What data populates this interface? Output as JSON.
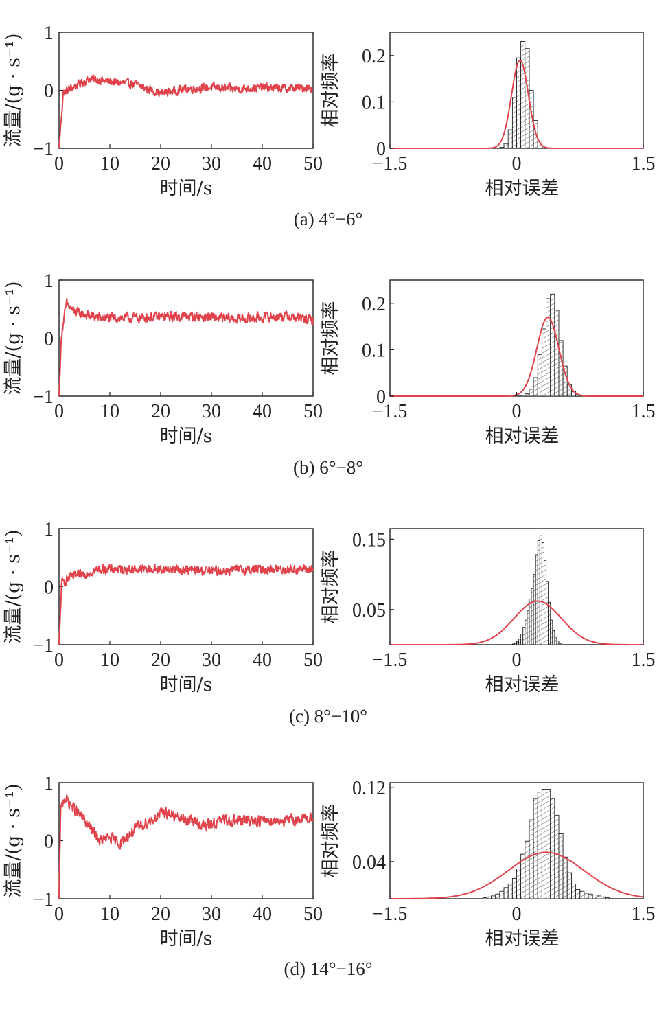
{
  "chart_data": [
    {
      "id": "a",
      "caption": "(a) 4°−6°",
      "time_series": {
        "type": "line",
        "xlabel": "时间/s",
        "ylabel": "流量/(g · s⁻¹)",
        "xlim": [
          0,
          50
        ],
        "ylim": [
          -1,
          1
        ],
        "xticks": [
          "0",
          "10",
          "20",
          "30",
          "40",
          "50"
        ],
        "yticks": [
          "−1",
          "0",
          "1"
        ],
        "series": [
          {
            "name": "flow",
            "mean": 0.05,
            "noise": 0.065,
            "start": -1.0,
            "anchors": [
              [
                0,
                -1.0
              ],
              [
                0.8,
                -0.05
              ],
              [
                2,
                0.02
              ],
              [
                6,
                0.2
              ],
              [
                10,
                0.15
              ],
              [
                15,
                0.1
              ],
              [
                20,
                -0.05
              ],
              [
                25,
                0.02
              ],
              [
                30,
                0.05
              ],
              [
                35,
                0.02
              ],
              [
                40,
                0.05
              ],
              [
                45,
                0.03
              ],
              [
                50,
                0.05
              ]
            ]
          }
        ]
      },
      "histogram": {
        "type": "bar",
        "xlabel": "相对误差",
        "ylabel": "相对频率",
        "xlim": [
          -1.5,
          1.5
        ],
        "ylim": [
          0,
          0.25
        ],
        "xticks": [
          "−1.5",
          "0",
          "1.5"
        ],
        "yticks": [
          "0",
          "0.1",
          "0.2"
        ],
        "bin_width": 0.05,
        "bins": [
          [
            -0.2,
            0.002
          ],
          [
            -0.15,
            0.01
          ],
          [
            -0.1,
            0.04
          ],
          [
            -0.05,
            0.11
          ],
          [
            0.0,
            0.195
          ],
          [
            0.05,
            0.23
          ],
          [
            0.1,
            0.215
          ],
          [
            0.15,
            0.125
          ],
          [
            0.2,
            0.06
          ],
          [
            0.25,
            0.015
          ],
          [
            0.3,
            0.003
          ]
        ],
        "fit": {
          "mu": 0.04,
          "sigma": 0.1,
          "peak": 0.19
        }
      }
    },
    {
      "id": "b",
      "caption": "(b) 6°−8°",
      "time_series": {
        "type": "line",
        "xlabel": "时间/s",
        "ylabel": "流量/(g · s⁻¹)",
        "xlim": [
          0,
          50
        ],
        "ylim": [
          -1,
          1
        ],
        "xticks": [
          "0",
          "10",
          "20",
          "30",
          "40",
          "50"
        ],
        "yticks": [
          "−1",
          "0",
          "1"
        ],
        "series": [
          {
            "name": "flow",
            "mean": 0.35,
            "noise": 0.075,
            "start": -1.0,
            "anchors": [
              [
                0,
                -1.0
              ],
              [
                0.5,
                0.1
              ],
              [
                1.5,
                0.6
              ],
              [
                3,
                0.45
              ],
              [
                8,
                0.35
              ],
              [
                15,
                0.35
              ],
              [
                25,
                0.38
              ],
              [
                35,
                0.33
              ],
              [
                45,
                0.38
              ],
              [
                50,
                0.3
              ]
            ]
          }
        ]
      },
      "histogram": {
        "type": "bar",
        "xlabel": "相对误差",
        "ylabel": "相对频率",
        "xlim": [
          -1.5,
          1.5
        ],
        "ylim": [
          0,
          0.25
        ],
        "xticks": [
          "−1.5",
          "0",
          "1.5"
        ],
        "yticks": [
          "0",
          "0.1",
          "0.2"
        ],
        "bin_width": 0.05,
        "bins": [
          [
            0.05,
            0.002
          ],
          [
            0.1,
            0.005
          ],
          [
            0.15,
            0.015
          ],
          [
            0.2,
            0.04
          ],
          [
            0.25,
            0.09
          ],
          [
            0.3,
            0.145
          ],
          [
            0.35,
            0.21
          ],
          [
            0.4,
            0.22
          ],
          [
            0.45,
            0.185
          ],
          [
            0.5,
            0.12
          ],
          [
            0.55,
            0.065
          ],
          [
            0.6,
            0.025
          ],
          [
            0.65,
            0.01
          ],
          [
            0.7,
            0.003
          ]
        ],
        "fit": {
          "mu": 0.37,
          "sigma": 0.13,
          "peak": 0.17
        }
      }
    },
    {
      "id": "c",
      "caption": "(c) 8°−10°",
      "time_series": {
        "type": "line",
        "xlabel": "时间/s",
        "ylabel": "流量/(g · s⁻¹)",
        "xlim": [
          0,
          50
        ],
        "ylim": [
          -1,
          1
        ],
        "xticks": [
          "0",
          "10",
          "20",
          "30",
          "40",
          "50"
        ],
        "yticks": [
          "−1",
          "0",
          "1"
        ],
        "series": [
          {
            "name": "flow",
            "mean": 0.28,
            "noise": 0.07,
            "start": -1.0,
            "anchors": [
              [
                0,
                -1.0
              ],
              [
                0.5,
                0.05
              ],
              [
                2,
                0.15
              ],
              [
                8,
                0.3
              ],
              [
                15,
                0.3
              ],
              [
                22,
                0.3
              ],
              [
                30,
                0.27
              ],
              [
                40,
                0.3
              ],
              [
                50,
                0.3
              ]
            ]
          }
        ]
      },
      "histogram": {
        "type": "bar",
        "xlabel": "相对误差",
        "ylabel": "相对频率",
        "xlim": [
          -1.5,
          1.5
        ],
        "ylim": [
          0,
          0.165
        ],
        "xticks": [
          "−1.5",
          "0",
          "1.5"
        ],
        "yticks": [
          "0.05",
          "0.15"
        ],
        "bin_width": 0.025,
        "bins": [
          [
            -0.05,
            0.001
          ],
          [
            -0.025,
            0.002
          ],
          [
            0.0,
            0.004
          ],
          [
            0.025,
            0.008
          ],
          [
            0.05,
            0.015
          ],
          [
            0.075,
            0.025
          ],
          [
            0.1,
            0.035
          ],
          [
            0.125,
            0.048
          ],
          [
            0.15,
            0.065
          ],
          [
            0.175,
            0.08
          ],
          [
            0.2,
            0.1
          ],
          [
            0.225,
            0.128
          ],
          [
            0.25,
            0.148
          ],
          [
            0.275,
            0.155
          ],
          [
            0.3,
            0.145
          ],
          [
            0.325,
            0.12
          ],
          [
            0.35,
            0.09
          ],
          [
            0.375,
            0.06
          ],
          [
            0.4,
            0.035
          ],
          [
            0.425,
            0.02
          ],
          [
            0.45,
            0.01
          ],
          [
            0.475,
            0.005
          ],
          [
            0.5,
            0.002
          ]
        ],
        "fit": {
          "mu": 0.25,
          "sigma": 0.28,
          "peak": 0.062
        }
      }
    },
    {
      "id": "d",
      "caption": "(d) 14°−16°",
      "time_series": {
        "type": "line",
        "xlabel": "时间/s",
        "ylabel": "流量/(g · s⁻¹)",
        "xlim": [
          0,
          50
        ],
        "ylim": [
          -1,
          1
        ],
        "xticks": [
          "0",
          "10",
          "20",
          "30",
          "40",
          "50"
        ],
        "yticks": [
          "−1",
          "0",
          "1"
        ],
        "series": [
          {
            "name": "flow",
            "mean": 0.35,
            "noise": 0.085,
            "start": -1.0,
            "anchors": [
              [
                0,
                -1.0
              ],
              [
                0.3,
                0.5
              ],
              [
                1,
                0.75
              ],
              [
                3,
                0.55
              ],
              [
                5,
                0.35
              ],
              [
                8,
                0.0
              ],
              [
                10,
                0.05
              ],
              [
                12,
                -0.05
              ],
              [
                15,
                0.2
              ],
              [
                18,
                0.35
              ],
              [
                21,
                0.5
              ],
              [
                23,
                0.4
              ],
              [
                26,
                0.35
              ],
              [
                29,
                0.25
              ],
              [
                32,
                0.35
              ],
              [
                40,
                0.35
              ],
              [
                45,
                0.35
              ],
              [
                50,
                0.4
              ]
            ]
          }
        ]
      },
      "histogram": {
        "type": "bar",
        "xlabel": "相对误差",
        "ylabel": "相对频率",
        "xlim": [
          -1.5,
          1.5
        ],
        "ylim": [
          0,
          0.125
        ],
        "xticks": [
          "−1.5",
          "0",
          "1.5"
        ],
        "yticks": [
          "0.04",
          "0.12"
        ],
        "bin_width": 0.05,
        "bins": [
          [
            -0.4,
            0.001
          ],
          [
            -0.35,
            0.002
          ],
          [
            -0.3,
            0.003
          ],
          [
            -0.25,
            0.005
          ],
          [
            -0.2,
            0.008
          ],
          [
            -0.15,
            0.012
          ],
          [
            -0.1,
            0.016
          ],
          [
            -0.05,
            0.022
          ],
          [
            0.0,
            0.032
          ],
          [
            0.05,
            0.048
          ],
          [
            0.1,
            0.062
          ],
          [
            0.15,
            0.085
          ],
          [
            0.2,
            0.108
          ],
          [
            0.25,
            0.115
          ],
          [
            0.3,
            0.118
          ],
          [
            0.35,
            0.118
          ],
          [
            0.4,
            0.108
          ],
          [
            0.45,
            0.09
          ],
          [
            0.5,
            0.07
          ],
          [
            0.55,
            0.045
          ],
          [
            0.6,
            0.028
          ],
          [
            0.65,
            0.016
          ],
          [
            0.7,
            0.01
          ],
          [
            0.75,
            0.008
          ],
          [
            0.8,
            0.006
          ],
          [
            0.85,
            0.005
          ],
          [
            0.9,
            0.004
          ],
          [
            0.95,
            0.003
          ],
          [
            1.0,
            0.002
          ],
          [
            1.05,
            0.001
          ]
        ],
        "fit": {
          "mu": 0.35,
          "sigma": 0.45,
          "peak": 0.05
        }
      }
    }
  ]
}
